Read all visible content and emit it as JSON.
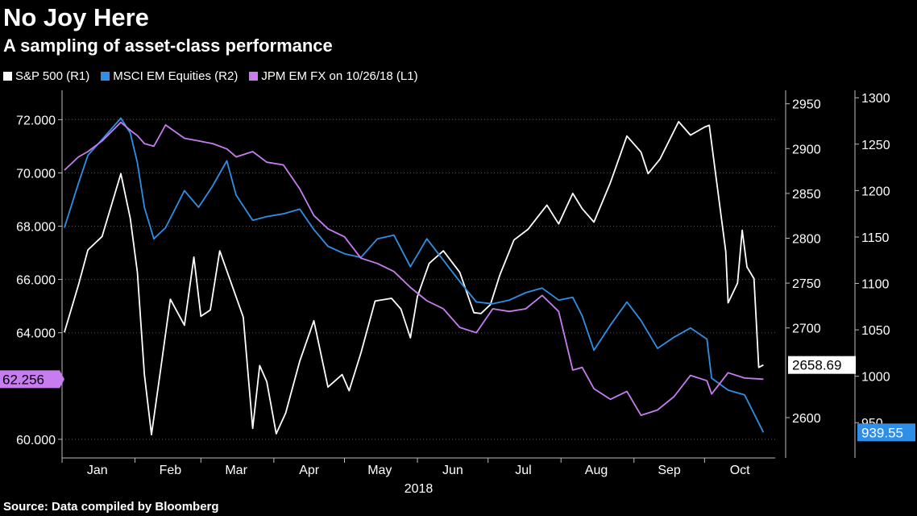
{
  "header": {
    "title": "No Joy Here",
    "subtitle": "A sampling of asset-class performance"
  },
  "legend": {
    "items": [
      {
        "label": "S&P 500 (R1)",
        "color": "#ffffff"
      },
      {
        "label": "MSCI EM Equities (R2)",
        "color": "#2f8fe6"
      },
      {
        "label": "JPM EM FX  on 10/26/18 (L1)",
        "color": "#c77df0"
      }
    ]
  },
  "footer": {
    "source": "Source: Data compiled by Bloomberg"
  },
  "chart_data": {
    "type": "line",
    "xlabel": "2018",
    "x_ticks": [
      "Jan",
      "Feb",
      "Mar",
      "Apr",
      "May",
      "Jun",
      "Jul",
      "Aug",
      "Sep",
      "Oct"
    ],
    "axes": {
      "left": {
        "ticks": [
          "60.000",
          "64.000",
          "66.000",
          "68.000",
          "70.000",
          "72.000"
        ],
        "ylim": [
          59.3,
          73.1
        ]
      },
      "right1": {
        "ticks": [
          "2600",
          "2700",
          "2750",
          "2800",
          "2850",
          "2900",
          "2950"
        ],
        "ylim": [
          2555,
          2965
        ]
      },
      "right2": {
        "ticks": [
          "950",
          "1000",
          "1050",
          "1100",
          "1150",
          "1200",
          "1250",
          "1300"
        ],
        "ylim": [
          912,
          1308
        ]
      }
    },
    "last_value_labels": {
      "sp500": "2658.69",
      "msci": "939.55",
      "fx": "62.256"
    },
    "series": [
      {
        "name": "S&P 500 (R1)",
        "axis": "right1",
        "color": "#ffffff",
        "x": [
          "2018-01-02",
          "2018-01-08",
          "2018-01-12",
          "2018-01-18",
          "2018-01-26",
          "2018-01-30",
          "2018-02-02",
          "2018-02-05",
          "2018-02-08",
          "2018-02-12",
          "2018-02-16",
          "2018-02-22",
          "2018-02-26",
          "2018-03-01",
          "2018-03-05",
          "2018-03-09",
          "2018-03-14",
          "2018-03-19",
          "2018-03-23",
          "2018-03-26",
          "2018-03-29",
          "2018-04-02",
          "2018-04-06",
          "2018-04-12",
          "2018-04-18",
          "2018-04-24",
          "2018-04-30",
          "2018-05-03",
          "2018-05-08",
          "2018-05-14",
          "2018-05-21",
          "2018-05-25",
          "2018-05-29",
          "2018-06-01",
          "2018-06-06",
          "2018-06-12",
          "2018-06-19",
          "2018-06-25",
          "2018-06-28",
          "2018-07-02",
          "2018-07-06",
          "2018-07-12",
          "2018-07-18",
          "2018-07-26",
          "2018-07-31",
          "2018-08-06",
          "2018-08-10",
          "2018-08-15",
          "2018-08-22",
          "2018-08-29",
          "2018-09-04",
          "2018-09-07",
          "2018-09-12",
          "2018-09-20",
          "2018-09-25",
          "2018-10-01",
          "2018-10-03",
          "2018-10-10",
          "2018-10-11",
          "2018-10-15",
          "2018-10-17",
          "2018-10-19",
          "2018-10-22",
          "2018-10-24",
          "2018-10-26"
        ],
        "values": [
          2695,
          2748,
          2787,
          2802,
          2872,
          2822,
          2762,
          2648,
          2581,
          2656,
          2732,
          2703,
          2779,
          2713,
          2720,
          2786,
          2749,
          2712,
          2588,
          2658,
          2640,
          2582,
          2605,
          2663,
          2708,
          2634,
          2648,
          2630,
          2672,
          2730,
          2733,
          2721,
          2689,
          2735,
          2772,
          2786,
          2762,
          2717,
          2716,
          2726,
          2759,
          2798,
          2810,
          2837,
          2816,
          2850,
          2833,
          2818,
          2862,
          2914,
          2896,
          2872,
          2888,
          2930,
          2915,
          2924,
          2926,
          2785,
          2728,
          2750,
          2809,
          2768,
          2755,
          2656,
          2658.69
        ]
      },
      {
        "name": "MSCI EM Equities (R2)",
        "axis": "right2",
        "color": "#2f8fe6",
        "x": [
          "2018-01-02",
          "2018-01-08",
          "2018-01-12",
          "2018-01-18",
          "2018-01-26",
          "2018-01-30",
          "2018-02-02",
          "2018-02-05",
          "2018-02-09",
          "2018-02-14",
          "2018-02-22",
          "2018-02-28",
          "2018-03-06",
          "2018-03-12",
          "2018-03-16",
          "2018-03-23",
          "2018-03-29",
          "2018-04-05",
          "2018-04-12",
          "2018-04-18",
          "2018-04-24",
          "2018-05-01",
          "2018-05-08",
          "2018-05-15",
          "2018-05-22",
          "2018-05-29",
          "2018-06-05",
          "2018-06-12",
          "2018-06-19",
          "2018-06-26",
          "2018-07-03",
          "2018-07-10",
          "2018-07-17",
          "2018-07-24",
          "2018-07-31",
          "2018-08-06",
          "2018-08-10",
          "2018-08-15",
          "2018-08-22",
          "2018-08-29",
          "2018-09-04",
          "2018-09-11",
          "2018-09-18",
          "2018-09-25",
          "2018-10-02",
          "2018-10-04",
          "2018-10-11",
          "2018-10-18",
          "2018-10-26"
        ],
        "values": [
          1160,
          1208,
          1238,
          1255,
          1278,
          1262,
          1230,
          1182,
          1148,
          1160,
          1200,
          1182,
          1205,
          1232,
          1195,
          1168,
          1172,
          1175,
          1180,
          1158,
          1140,
          1132,
          1128,
          1148,
          1152,
          1118,
          1148,
          1125,
          1102,
          1080,
          1078,
          1082,
          1090,
          1095,
          1082,
          1085,
          1065,
          1028,
          1055,
          1080,
          1060,
          1030,
          1042,
          1052,
          1040,
          998,
          985,
          980,
          939.55
        ]
      },
      {
        "name": "JPM EM FX  on 10/26/18 (L1)",
        "axis": "left",
        "color": "#c77df0",
        "x": [
          "2018-01-02",
          "2018-01-08",
          "2018-01-12",
          "2018-01-18",
          "2018-01-26",
          "2018-01-30",
          "2018-02-02",
          "2018-02-05",
          "2018-02-09",
          "2018-02-14",
          "2018-02-22",
          "2018-02-28",
          "2018-03-06",
          "2018-03-12",
          "2018-03-16",
          "2018-03-23",
          "2018-03-29",
          "2018-04-05",
          "2018-04-12",
          "2018-04-18",
          "2018-04-24",
          "2018-05-01",
          "2018-05-08",
          "2018-05-15",
          "2018-05-22",
          "2018-05-29",
          "2018-06-05",
          "2018-06-12",
          "2018-06-19",
          "2018-06-26",
          "2018-07-03",
          "2018-07-10",
          "2018-07-17",
          "2018-07-24",
          "2018-07-31",
          "2018-08-06",
          "2018-08-10",
          "2018-08-15",
          "2018-08-22",
          "2018-08-29",
          "2018-09-04",
          "2018-09-11",
          "2018-09-18",
          "2018-09-25",
          "2018-10-02",
          "2018-10-04",
          "2018-10-11",
          "2018-10-18",
          "2018-10-26"
        ],
        "values": [
          70.1,
          70.6,
          70.8,
          71.2,
          71.9,
          71.6,
          71.4,
          71.1,
          71.0,
          71.8,
          71.3,
          71.2,
          71.1,
          70.9,
          70.6,
          70.8,
          70.4,
          70.3,
          69.4,
          68.4,
          67.9,
          67.6,
          66.8,
          66.6,
          66.3,
          65.7,
          65.2,
          64.9,
          64.2,
          64.0,
          64.9,
          64.8,
          64.9,
          65.4,
          64.8,
          62.6,
          62.7,
          61.9,
          61.5,
          61.8,
          60.9,
          61.1,
          61.6,
          62.4,
          62.2,
          61.7,
          62.5,
          62.3,
          62.256
        ]
      }
    ]
  }
}
